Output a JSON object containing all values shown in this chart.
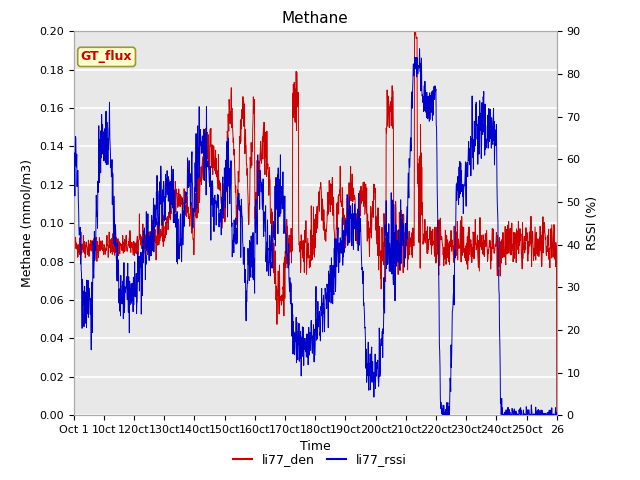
{
  "title": "Methane",
  "xlabel": "Time",
  "ylabel_left": "Methane (mmol/m3)",
  "ylabel_right": "RSSI (%)",
  "ylim_left": [
    0.0,
    0.2
  ],
  "ylim_right": [
    0,
    90
  ],
  "yticks_left": [
    0.0,
    0.02,
    0.04,
    0.06,
    0.08,
    0.1,
    0.12,
    0.14,
    0.16,
    0.18,
    0.2
  ],
  "yticks_right": [
    0,
    10,
    20,
    30,
    40,
    50,
    60,
    70,
    80,
    90
  ],
  "xtick_labels": [
    "Oct 1",
    "10ct",
    "120ct",
    "130ct",
    "140ct",
    "150ct",
    "160ct",
    "170ct",
    "180ct",
    "190ct",
    "200ct",
    "210ct",
    "220ct",
    "230ct",
    "240ct",
    "250ct",
    "26"
  ],
  "color_red": "#cc0000",
  "color_blue": "#0000cc",
  "legend_label_red": "li77_den",
  "legend_label_blue": "li77_rssi",
  "box_label": "GT_flux",
  "box_color": "#ffffcc",
  "box_border": "#999933",
  "plot_bg_color": "#e8e8e8",
  "fig_bg_color": "#ffffff",
  "grid_color": "#ffffff",
  "title_fontsize": 11,
  "axis_fontsize": 9,
  "tick_fontsize": 8,
  "legend_fontsize": 9
}
